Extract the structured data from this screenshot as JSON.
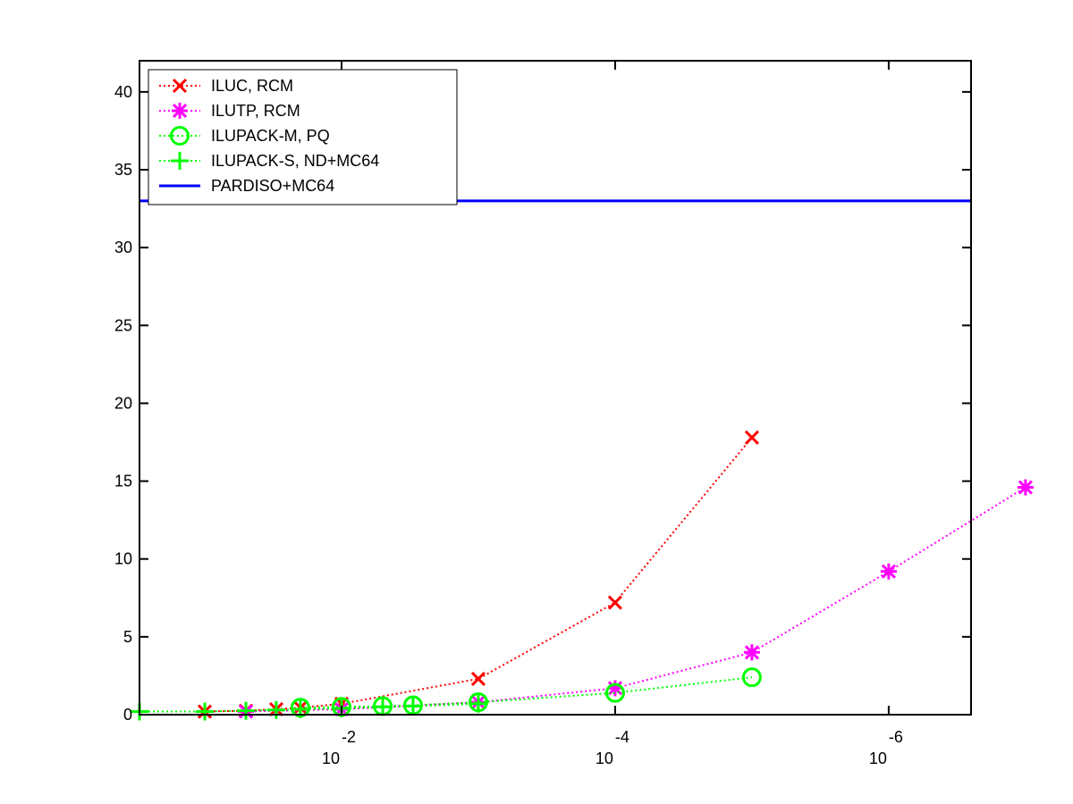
{
  "chart_data": {
    "type": "line",
    "title": "",
    "xlabel": "",
    "ylabel": "",
    "x_scale": "log-reversed",
    "xlim": [
      0.3,
      2.5e-07
    ],
    "ylim": [
      0,
      42
    ],
    "x_tick_labels": [
      {
        "base": "10",
        "exp": "-2",
        "value": 0.01
      },
      {
        "base": "10",
        "exp": "-4",
        "value": 0.0001
      },
      {
        "base": "10",
        "exp": "-6",
        "value": 1e-06
      }
    ],
    "y_ticks": [
      0,
      5,
      10,
      15,
      20,
      25,
      30,
      35,
      40
    ],
    "grid": false,
    "legend_position": "top-left",
    "colors": {
      "iluc": "#ff0000",
      "ilutp": "#ff00ff",
      "ilupack_m": "#00ff00",
      "ilupack_s": "#00ff00",
      "pardiso": "#0000ff"
    },
    "series": [
      {
        "name": "ILUC, RCM",
        "key": "iluc",
        "line": "dotted",
        "marker": "x",
        "x": [
          0.1,
          0.05,
          0.03,
          0.02,
          0.01,
          0.001,
          0.0001,
          1e-05
        ],
        "y": [
          0.2,
          0.25,
          0.35,
          0.45,
          0.7,
          2.3,
          7.2,
          17.8
        ]
      },
      {
        "name": "ILUTP, RCM",
        "key": "ilutp",
        "line": "dotted",
        "marker": "star",
        "x": [
          0.05,
          0.01,
          0.001,
          0.0001,
          1e-05,
          1e-06,
          1e-07
        ],
        "y": [
          0.2,
          0.35,
          0.8,
          1.7,
          4.0,
          9.2,
          14.6
        ]
      },
      {
        "name": "ILUPACK-M, PQ",
        "key": "ilupack_m",
        "line": "dotted",
        "marker": "circle",
        "x": [
          0.02,
          0.01,
          0.005,
          0.003,
          0.001,
          0.0001,
          1e-05
        ],
        "y": [
          0.45,
          0.5,
          0.55,
          0.6,
          0.8,
          1.4,
          2.4
        ]
      },
      {
        "name": "ILUPACK-S, ND+MC64",
        "key": "ilupack_s",
        "line": "dotted",
        "marker": "plus",
        "x": [
          0.3,
          0.1,
          0.05,
          0.03,
          0.02,
          0.01,
          0.005,
          0.003,
          0.001
        ],
        "y": [
          0.2,
          0.2,
          0.25,
          0.3,
          0.35,
          0.4,
          0.5,
          0.55,
          0.7
        ]
      },
      {
        "name": "PARDISO+MC64",
        "key": "pardiso",
        "line": "solid",
        "marker": "none",
        "x": [
          0.3,
          2.5e-07
        ],
        "y": [
          33,
          33
        ]
      }
    ]
  }
}
